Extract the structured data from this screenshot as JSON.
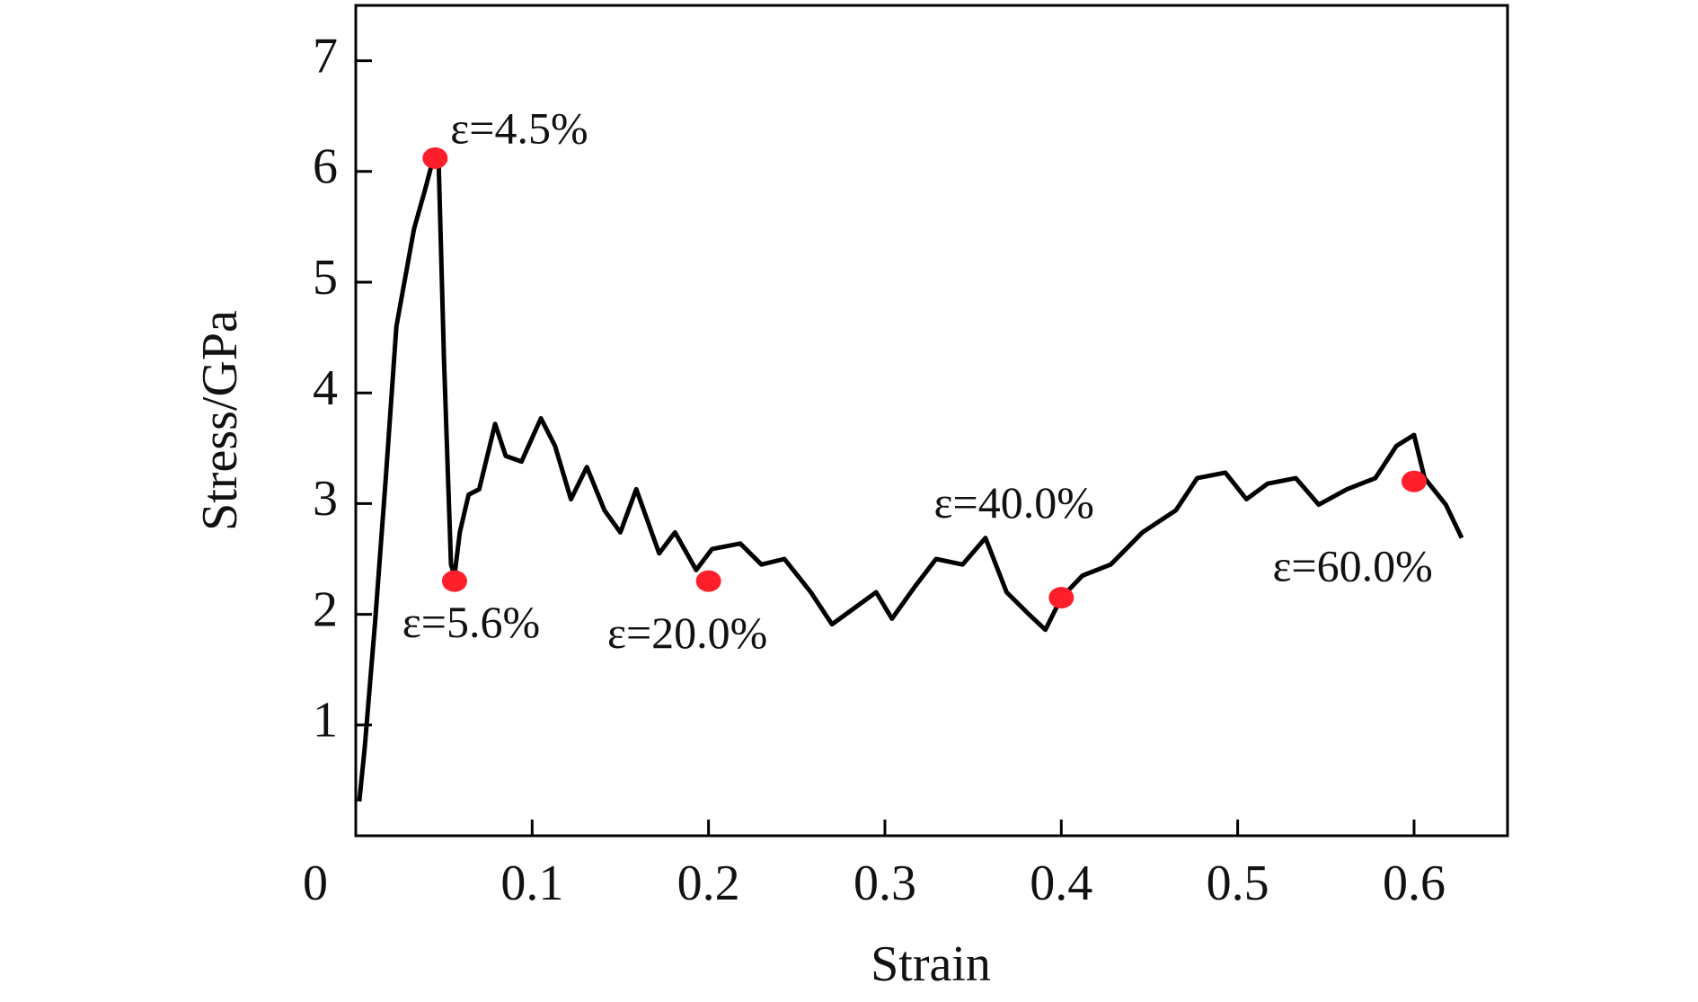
{
  "chart_data": {
    "type": "line",
    "xlabel": "Strain",
    "ylabel": "Stress/GPa",
    "xlim": [
      0,
      0.653
    ],
    "ylim": [
      0,
      7.5
    ],
    "xticks": [
      0,
      0.1,
      0.2,
      0.3,
      0.4,
      0.5,
      0.6
    ],
    "yticks": [
      1,
      2,
      3,
      4,
      5,
      6,
      7
    ],
    "series": [
      {
        "color": "#000000",
        "x": [
          0.002,
          0.005,
          0.011,
          0.017,
          0.023,
          0.033,
          0.039,
          0.044,
          0.047,
          0.05,
          0.054,
          0.056,
          0.059,
          0.064,
          0.07,
          0.079,
          0.085,
          0.094,
          0.105,
          0.113,
          0.122,
          0.131,
          0.141,
          0.15,
          0.159,
          0.172,
          0.181,
          0.193,
          0.202,
          0.218,
          0.23,
          0.243,
          0.258,
          0.27,
          0.283,
          0.295,
          0.304,
          0.317,
          0.329,
          0.344,
          0.357,
          0.369,
          0.381,
          0.391,
          0.4,
          0.412,
          0.428,
          0.446,
          0.465,
          0.477,
          0.493,
          0.505,
          0.517,
          0.533,
          0.546,
          0.562,
          0.578,
          0.59,
          0.6,
          0.606,
          0.618,
          0.627
        ],
        "values": [
          0.31,
          0.78,
          1.94,
          3.23,
          4.6,
          5.48,
          5.82,
          6.12,
          6.07,
          4.3,
          2.45,
          2.35,
          2.74,
          3.08,
          3.13,
          3.72,
          3.43,
          3.38,
          3.77,
          3.52,
          3.04,
          3.33,
          2.94,
          2.74,
          3.13,
          2.55,
          2.74,
          2.4,
          2.59,
          2.64,
          2.45,
          2.5,
          2.2,
          1.91,
          2.06,
          2.2,
          1.96,
          2.25,
          2.5,
          2.45,
          2.69,
          2.2,
          2.01,
          1.86,
          2.15,
          2.35,
          2.45,
          2.74,
          2.94,
          3.23,
          3.28,
          3.04,
          3.18,
          3.23,
          2.99,
          3.13,
          3.23,
          3.52,
          3.62,
          3.23,
          2.99,
          2.69
        ]
      }
    ],
    "markers": {
      "color": "#ff1f2a",
      "x": [
        0.045,
        0.056,
        0.2,
        0.4,
        0.6
      ],
      "values": [
        6.12,
        2.3,
        2.3,
        2.15,
        3.2
      ],
      "labels": [
        "ε=4.5%",
        "ε=5.6%",
        "ε=20.0%",
        "ε=40.0%",
        "ε=60.0%"
      ]
    }
  }
}
